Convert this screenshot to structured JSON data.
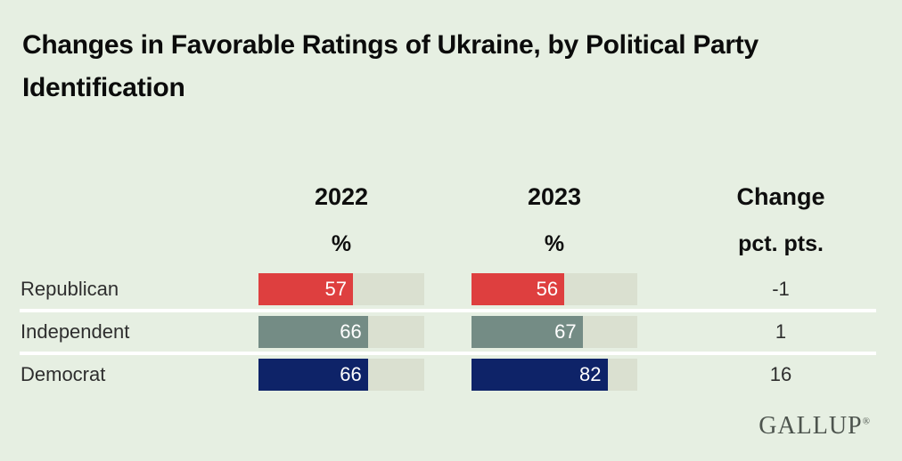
{
  "title": {
    "line1": "Changes in Favorable Ratings of Ukraine, by Political Party",
    "line2": "Identification",
    "full": "Changes in Favorable Ratings of Ukraine, by Political Party Identification"
  },
  "chart_data": {
    "type": "bar",
    "orientation": "horizontal",
    "title": "Changes in Favorable Ratings of Ukraine, by Political Party Identification",
    "categories": [
      "Republican",
      "Independent",
      "Democrat"
    ],
    "series": [
      {
        "name": "2022",
        "unit": "%",
        "values": [
          57,
          66,
          66
        ]
      },
      {
        "name": "2023",
        "unit": "%",
        "values": [
          56,
          67,
          82
        ]
      }
    ],
    "change": {
      "name": "Change",
      "unit": "pct. pts.",
      "values": [
        -1,
        1,
        16
      ]
    },
    "xlim": [
      0,
      100
    ],
    "grid": false,
    "legend": "none",
    "bar_colors": [
      "#de3f3f",
      "#748c85",
      "#0e2368"
    ],
    "track_color": "#dae0d0",
    "value_label_color": "#ffffff"
  },
  "colors": {
    "background": "#e6efe2",
    "separator": "#ffffff",
    "title_text": "#0b0b0b",
    "body_text": "#2e2e2e",
    "logo_text": "#4d544e"
  },
  "footer": {
    "logo": "GALLUP",
    "registered": "®"
  }
}
